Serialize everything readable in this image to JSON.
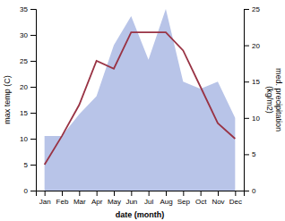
{
  "chart_data": {
    "type": "line",
    "xlabel": "date (month)",
    "ylabel": "max temp (C)",
    "y2label": "med. precipitation\n(kg/m2)",
    "categories": [
      "Jan",
      "Feb",
      "Mar",
      "Apr",
      "May",
      "Jun",
      "Jul",
      "Aug",
      "Sep",
      "Oct",
      "Nov",
      "Dec"
    ],
    "series": [
      {
        "type": "area",
        "axis": "y2",
        "color": "#b8c4e8",
        "values": [
          7.5,
          7.5,
          10.5,
          13.0,
          20.0,
          24.0,
          18.0,
          25.0,
          15.0,
          14.0,
          15.0,
          10.0
        ]
      },
      {
        "type": "line",
        "color": "#993344",
        "values": [
          5.0,
          10.5,
          16.5,
          25.0,
          23.5,
          30.5,
          30.5,
          30.5,
          27.0,
          20.0,
          13.0,
          10.0
        ]
      }
    ],
    "ylim": [
      0,
      35
    ],
    "yticks": [
      0,
      5,
      10,
      15,
      20,
      25,
      30,
      35
    ],
    "y2lim": [
      0,
      25
    ],
    "y2ticks": [
      0,
      5,
      10,
      15,
      20,
      25
    ],
    "grid": false
  }
}
